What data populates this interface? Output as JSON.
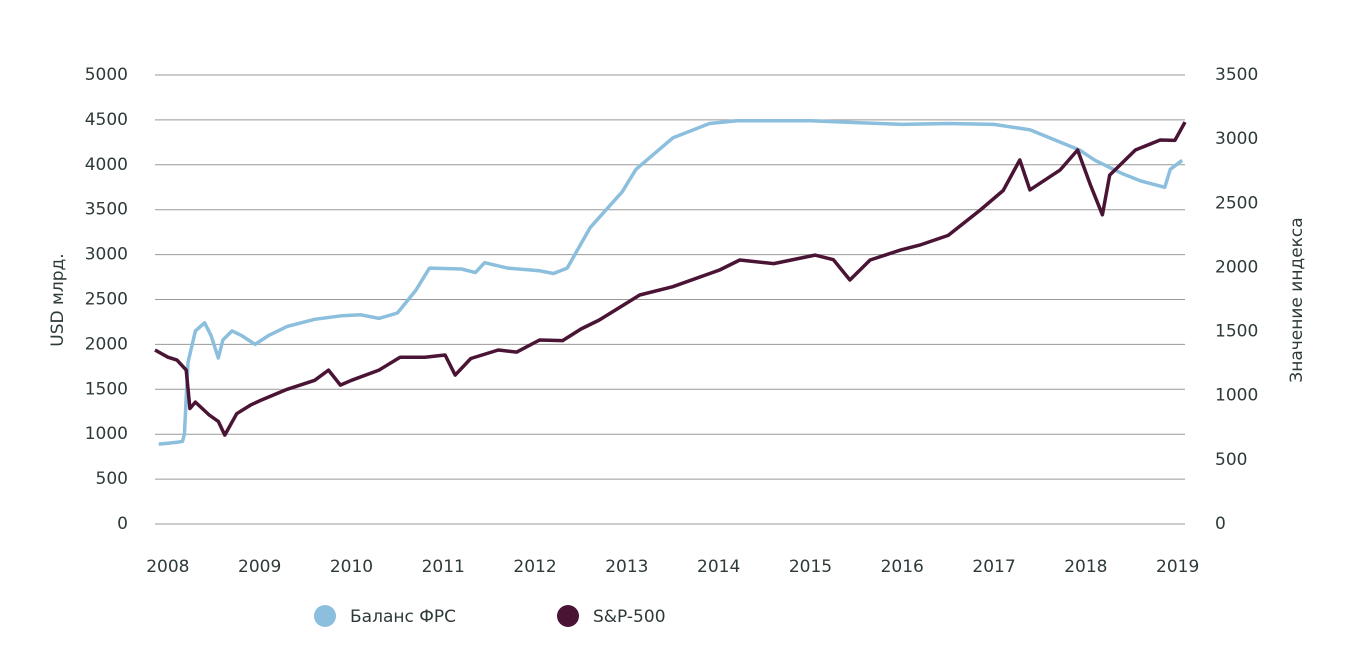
{
  "chart_data": {
    "type": "line",
    "y_label": "USD млрд.",
    "y2_label": "Значение индекса",
    "xlim": [
      2007.86,
      2019.08
    ],
    "xticks": [
      2008,
      2009,
      2010,
      2011,
      2012,
      2013,
      2014,
      2015,
      2016,
      2017,
      2018,
      2019
    ],
    "ylim": [
      0,
      5000
    ],
    "yticks": [
      0,
      500,
      1000,
      1500,
      2000,
      2500,
      3000,
      3500,
      4000,
      4500,
      5000
    ],
    "y2lim": [
      0,
      3500
    ],
    "y2ticks": [
      0,
      500,
      1000,
      1500,
      2000,
      2500,
      3000,
      3500
    ],
    "grid": true,
    "legend": "bottom",
    "series": [
      {
        "name": "Баланс ФРС",
        "color": "#8bbfdd",
        "x": [
          2007.9,
          2008.0,
          2008.1,
          2008.16,
          2008.18,
          2008.22,
          2008.3,
          2008.4,
          2008.47,
          2008.55,
          2008.6,
          2008.7,
          2008.8,
          2008.95,
          2009.1,
          2009.3,
          2009.6,
          2009.9,
          2010.1,
          2010.3,
          2010.5,
          2010.7,
          2010.85,
          2011.2,
          2011.35,
          2011.45,
          2011.7,
          2012.05,
          2012.2,
          2012.35,
          2012.6,
          2012.95,
          2013.1,
          2013.5,
          2013.9,
          2014.2,
          2014.6,
          2015.0,
          2015.5,
          2016.0,
          2016.5,
          2017.0,
          2017.39,
          2017.93,
          2018.1,
          2018.4,
          2018.6,
          2018.86,
          2018.92,
          2019.05
        ],
        "values": [
          890,
          900,
          910,
          920,
          1000,
          1800,
          2150,
          2240,
          2100,
          1850,
          2050,
          2150,
          2100,
          2000,
          2100,
          2200,
          2280,
          2320,
          2330,
          2290,
          2350,
          2600,
          2850,
          2840,
          2800,
          2910,
          2850,
          2820,
          2790,
          2850,
          3300,
          3700,
          3950,
          4300,
          4460,
          4490,
          4490,
          4490,
          4470,
          4450,
          4460,
          4450,
          4390,
          4165,
          4050,
          3900,
          3820,
          3750,
          3950,
          4050
        ]
      },
      {
        "name": "S&P-500",
        "color": "#4a1535",
        "axis": "y2",
        "x": [
          2007.86,
          2008.0,
          2008.1,
          2008.2,
          2008.24,
          2008.3,
          2008.45,
          2008.55,
          2008.62,
          2008.75,
          2008.9,
          2009.0,
          2009.3,
          2009.6,
          2009.75,
          2009.88,
          2010.0,
          2010.3,
          2010.53,
          2010.8,
          2011.02,
          2011.13,
          2011.3,
          2011.6,
          2011.8,
          2012.05,
          2012.3,
          2012.5,
          2012.7,
          2013.14,
          2013.5,
          2014.01,
          2014.23,
          2014.6,
          2015.05,
          2015.25,
          2015.43,
          2015.65,
          2015.98,
          2016.19,
          2016.5,
          2016.85,
          2017.1,
          2017.28,
          2017.39,
          2017.72,
          2017.91,
          2018.05,
          2018.18,
          2018.26,
          2018.54,
          2018.81,
          2018.97,
          2019.08
        ],
        "values": [
          1356,
          1300,
          1278,
          1200,
          900,
          950,
          850,
          800,
          693,
          860,
          927,
          960,
          1050,
          1120,
          1200,
          1083,
          1120,
          1200,
          1300,
          1300,
          1317,
          1161,
          1290,
          1356,
          1340,
          1434,
          1430,
          1520,
          1590,
          1785,
          1850,
          1980,
          2058,
          2030,
          2096,
          2060,
          1902,
          2058,
          2135,
          2174,
          2250,
          2448,
          2600,
          2838,
          2604,
          2760,
          2915,
          2643,
          2410,
          2720,
          2915,
          2993,
          2990,
          3133
        ]
      }
    ]
  }
}
